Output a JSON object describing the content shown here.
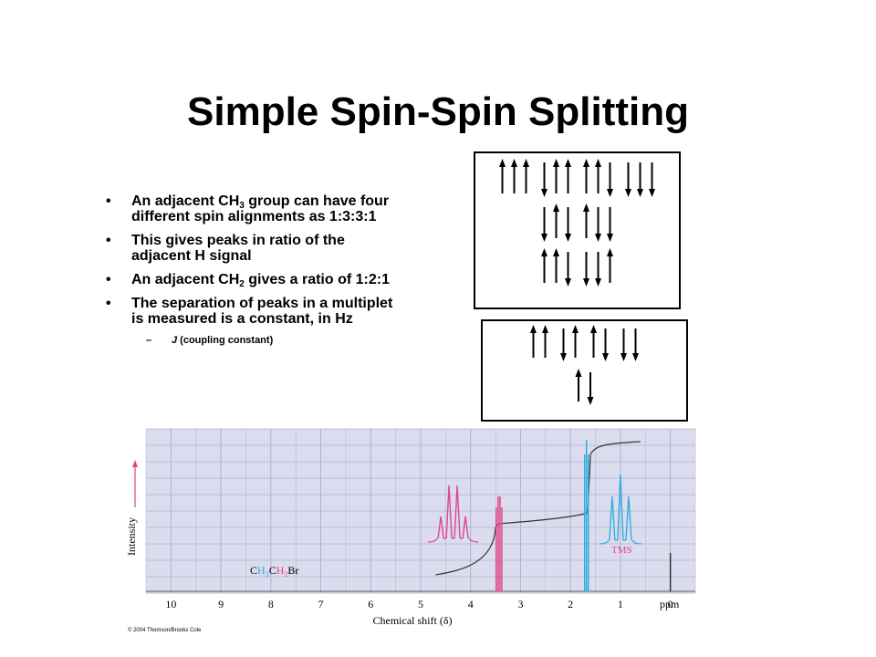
{
  "slide": {
    "title": "Simple Spin-Spin Splitting",
    "bullets": [
      {
        "pre": "An adjacent CH",
        "sub": "3",
        "post": " group can have four different spin alignments as 1:3:3:1"
      },
      {
        "text": "This gives peaks in ratio of the adjacent H signal"
      },
      {
        "pre": "An adjacent CH",
        "sub": "2",
        "post": " gives a ratio of 1:2:1"
      },
      {
        "text": "The separation of peaks in a multiplet is measured is a constant, in Hz"
      }
    ],
    "sub_bullet": {
      "dash": "–",
      "j": "J",
      "text": " (coupling constant)"
    }
  },
  "spin_diagrams": {
    "ch3_rows": [
      [
        [
          "up",
          "up",
          "up"
        ],
        [
          "down",
          "up",
          "up"
        ],
        [
          "up",
          "up",
          "down"
        ],
        [
          "down",
          "down",
          "down"
        ]
      ],
      [
        [
          "down",
          "up",
          "down"
        ],
        [
          "up",
          "down",
          "down"
        ]
      ],
      [
        [
          "up",
          "up",
          "down"
        ],
        [
          "down",
          "down",
          "up"
        ]
      ]
    ],
    "ch2_rows": [
      [
        [
          "up",
          "up"
        ],
        [
          "down",
          "up"
        ],
        [
          "up",
          "down"
        ],
        [
          "down",
          "down"
        ]
      ],
      [
        [
          "up",
          "down"
        ]
      ]
    ]
  },
  "spectrum": {
    "x_ticks": [
      "10",
      "9",
      "8",
      "7",
      "6",
      "5",
      "4",
      "3",
      "2",
      "1",
      "0"
    ],
    "x_unit": "ppm",
    "xlabel": "Chemical shift (δ)",
    "ylabel": "Intensity",
    "tms_label": "TMS",
    "formula": {
      "p1": "C",
      "p2": "H",
      "s2": "3",
      "p3": "C",
      "p4": "H",
      "s4": "2",
      "p5": "Br"
    },
    "colors": {
      "grid_bg": "#dcdcef",
      "grid_line": "#b0b0cc",
      "ch2": "#e0468c",
      "ch3": "#2eaee0",
      "trace": "#333333",
      "tms": "#e0468c"
    },
    "peaks": {
      "ch2_shift": 3.43,
      "ch2_multiplicity": "quartet",
      "ch2_ratio": [
        1,
        3,
        3,
        1
      ],
      "ch3_shift": 1.68,
      "ch3_multiplicity": "triplet",
      "ch3_ratio": [
        1,
        2,
        1
      ],
      "tms_shift": 0
    }
  },
  "copyright": "© 2004 Thomson/Brooks Cole"
}
